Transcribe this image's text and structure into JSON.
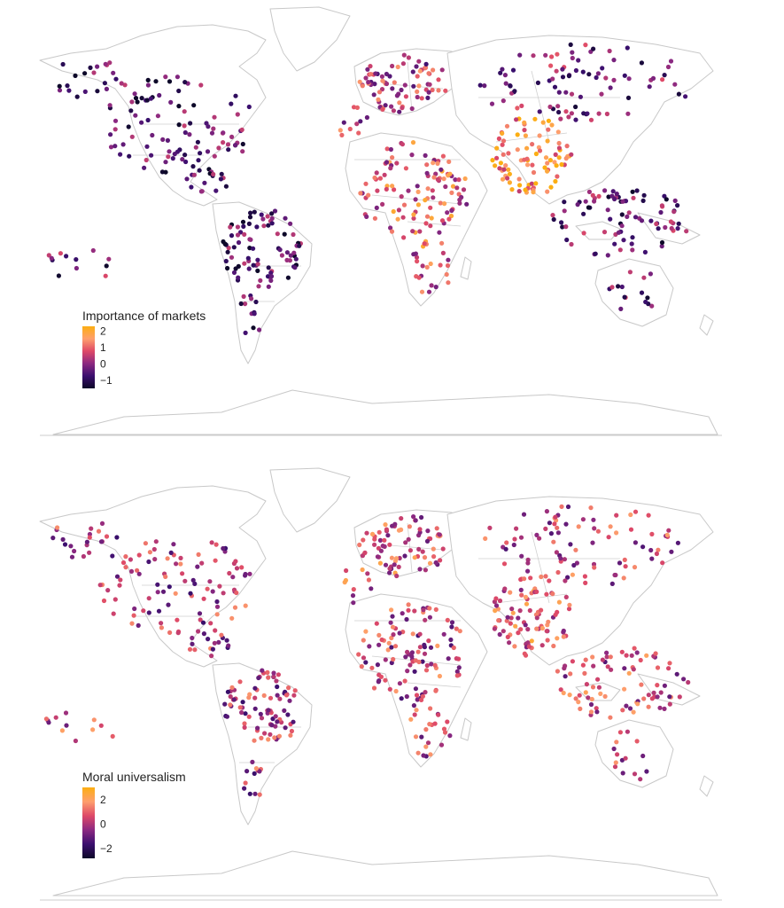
{
  "maps": [
    {
      "legend": {
        "title": "Importance of markets",
        "ticks": [
          "2",
          "1",
          "0",
          "−1"
        ],
        "tick_values": [
          2,
          1,
          0,
          -1
        ],
        "range": [
          -1.5,
          2.3
        ]
      },
      "seed": 11,
      "bias": {
        "south_asia": 1.6,
        "africa": 0.9,
        "europe": 0.4,
        "americas": -0.6,
        "pacific": -0.4,
        "north_asia": -0.2
      }
    },
    {
      "legend": {
        "title": "Moral universalism",
        "ticks": [
          "2",
          "0",
          "−2"
        ],
        "tick_values": [
          2,
          0,
          -2
        ],
        "range": [
          -2.8,
          3.0
        ]
      },
      "seed": 29,
      "bias": {
        "south_asia": 0.8,
        "africa": 0.2,
        "europe": 0.6,
        "americas": 0.0,
        "pacific": 0.4,
        "north_asia": 0.3
      }
    }
  ],
  "colors": {
    "scale": [
      "#0d0829",
      "#3b0f6f",
      "#8c2981",
      "#de4968",
      "#fe9f6d",
      "#fcae12"
    ],
    "land_stroke": "#c8c8c8"
  }
}
